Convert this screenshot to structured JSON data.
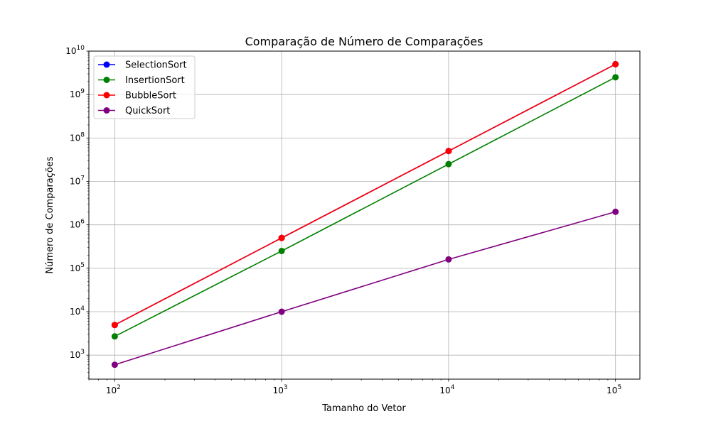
{
  "chart_data": {
    "type": "line",
    "title": "Comparação de Número de Comparações",
    "xlabel": "Tamanho do Vetor",
    "ylabel": "Número de Comparações",
    "x_scale": "log",
    "y_scale": "log",
    "xlim": [
      70,
      140000
    ],
    "ylim": [
      280,
      10000000000
    ],
    "grid": true,
    "legend_position": "top-left",
    "x": [
      100,
      1000,
      10000,
      100000
    ],
    "x_ticks": [
      {
        "value": 100,
        "base": "10",
        "exp": "2"
      },
      {
        "value": 1000,
        "base": "10",
        "exp": "3"
      },
      {
        "value": 10000,
        "base": "10",
        "exp": "4"
      },
      {
        "value": 100000,
        "base": "10",
        "exp": "5"
      }
    ],
    "y_ticks": [
      {
        "value": 1000,
        "base": "10",
        "exp": "3"
      },
      {
        "value": 10000,
        "base": "10",
        "exp": "4"
      },
      {
        "value": 100000,
        "base": "10",
        "exp": "5"
      },
      {
        "value": 1000000,
        "base": "10",
        "exp": "6"
      },
      {
        "value": 10000000,
        "base": "10",
        "exp": "7"
      },
      {
        "value": 100000000,
        "base": "10",
        "exp": "8"
      },
      {
        "value": 1000000000,
        "base": "10",
        "exp": "9"
      },
      {
        "value": 10000000000,
        "base": "10",
        "exp": "10"
      }
    ],
    "series": [
      {
        "name": "SelectionSort",
        "color": "#0000ff",
        "values": [
          4950,
          499500,
          49995000,
          4999950000
        ]
      },
      {
        "name": "InsertionSort",
        "color": "#008000",
        "values": [
          2700,
          250000,
          25000000,
          2500000000
        ]
      },
      {
        "name": "BubbleSort",
        "color": "#ff0000",
        "values": [
          4950,
          499500,
          49995000,
          4999950000
        ]
      },
      {
        "name": "QuickSort",
        "color": "#800080",
        "values": [
          600,
          10000,
          160000,
          2000000
        ]
      }
    ]
  }
}
